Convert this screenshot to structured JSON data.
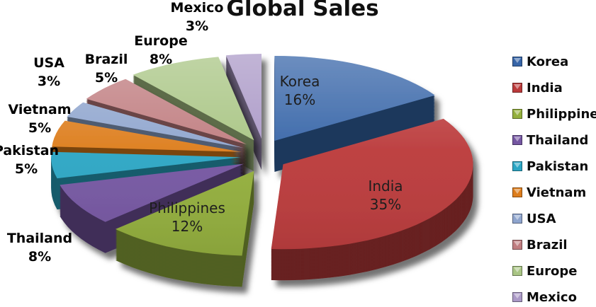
{
  "title": "Global Sales",
  "chart_data": {
    "type": "pie",
    "style": "3d-exploded",
    "title": "Global Sales",
    "categories": [
      "Korea",
      "India",
      "Philippines",
      "Thailand",
      "Pakistan",
      "Vietnam",
      "USA",
      "Brazil",
      "Europe",
      "Mexico"
    ],
    "values": [
      16,
      35,
      12,
      8,
      5,
      5,
      3,
      5,
      8,
      3
    ],
    "unit": "%",
    "pct_labels": [
      "16%",
      "35%",
      "12%",
      "8%",
      "5%",
      "5%",
      "3%",
      "5%",
      "8%",
      "3%"
    ],
    "colors": [
      "#3765A8",
      "#BB3A3B",
      "#93AF3C",
      "#7556A2",
      "#2BA6C4",
      "#DD7D1C",
      "#8FA5CE",
      "#C07D80",
      "#A9C584",
      "#AB99C7"
    ],
    "start_angle_deg": 0,
    "direction": "clockwise",
    "legend_position": "right",
    "labels_color": "#000000",
    "background": "#ffffff"
  }
}
